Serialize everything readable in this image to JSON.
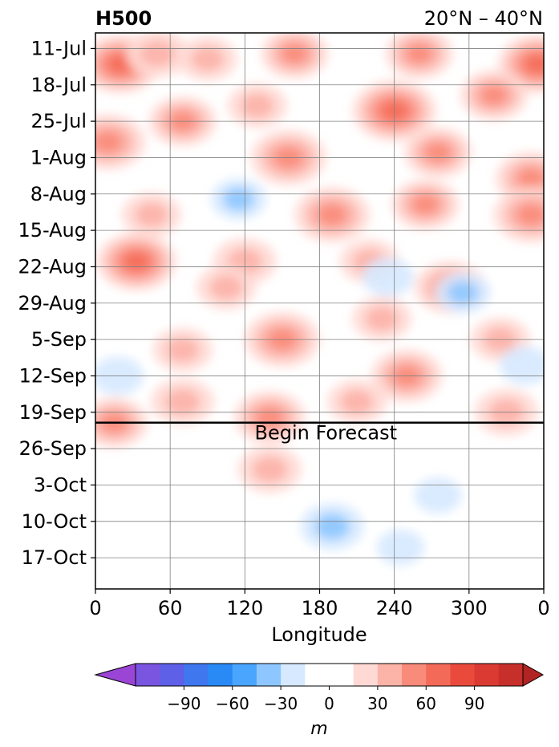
{
  "chart_data": {
    "type": "heatmap",
    "title_left": "H500",
    "title_right": "20°N – 40°N",
    "xlabel": "Longitude",
    "x_ticks": [
      "0",
      "60",
      "120",
      "180",
      "240",
      "300",
      "0"
    ],
    "y_ticks": [
      "11-Jul",
      "18-Jul",
      "25-Jul",
      "1-Aug",
      "8-Aug",
      "15-Aug",
      "22-Aug",
      "29-Aug",
      "5-Sep",
      "12-Sep",
      "19-Sep",
      "26-Sep",
      "3-Oct",
      "10-Oct",
      "17-Oct"
    ],
    "forecast_start": "2021-09-21",
    "annotation": "Begin Forecast",
    "colorbar": {
      "ticks": [
        "−90",
        "−60",
        "−30",
        "0",
        "30",
        "60",
        "90"
      ],
      "unit": "m",
      "levels": [
        -105,
        -90,
        -75,
        -60,
        -45,
        -30,
        -15,
        0,
        15,
        30,
        45,
        60,
        75,
        90,
        105
      ],
      "colors": [
        "#9b45d6",
        "#7a55df",
        "#5e60e8",
        "#3f77ee",
        "#2a8af5",
        "#4aa5ff",
        "#8ec7ff",
        "#d6e9ff",
        "#ffffff",
        "#ffffff",
        "#ffd9d4",
        "#fcb3a8",
        "#f98b7a",
        "#f46a58",
        "#ea4a3c",
        "#da3a32",
        "#c72f2b",
        "#b22323"
      ]
    },
    "grid": true,
    "anomaly_regions": [
      {
        "lon": 20,
        "date": "2021-07-14",
        "value": 55
      },
      {
        "lon": 50,
        "date": "2021-07-12",
        "value": 35
      },
      {
        "lon": 90,
        "date": "2021-07-13",
        "value": 30
      },
      {
        "lon": 160,
        "date": "2021-07-12",
        "value": 40
      },
      {
        "lon": 260,
        "date": "2021-07-12",
        "value": 40
      },
      {
        "lon": 355,
        "date": "2021-07-14",
        "value": 55
      },
      {
        "lon": 70,
        "date": "2021-07-25",
        "value": 40
      },
      {
        "lon": 130,
        "date": "2021-07-22",
        "value": 30
      },
      {
        "lon": 240,
        "date": "2021-07-23",
        "value": 60
      },
      {
        "lon": 320,
        "date": "2021-07-20",
        "value": 40
      },
      {
        "lon": 10,
        "date": "2021-07-29",
        "value": 50
      },
      {
        "lon": 155,
        "date": "2021-08-01",
        "value": 50
      },
      {
        "lon": 275,
        "date": "2021-07-31",
        "value": 40
      },
      {
        "lon": 350,
        "date": "2021-08-05",
        "value": 45
      },
      {
        "lon": 190,
        "date": "2021-08-12",
        "value": 50
      },
      {
        "lon": 45,
        "date": "2021-08-12",
        "value": 30
      },
      {
        "lon": 265,
        "date": "2021-08-10",
        "value": 40
      },
      {
        "lon": 350,
        "date": "2021-08-12",
        "value": 50
      },
      {
        "lon": 33,
        "date": "2021-08-21",
        "value": 55
      },
      {
        "lon": 120,
        "date": "2021-08-21",
        "value": 35
      },
      {
        "lon": 220,
        "date": "2021-08-21",
        "value": 30
      },
      {
        "lon": 285,
        "date": "2021-08-26",
        "value": 45
      },
      {
        "lon": 105,
        "date": "2021-08-26",
        "value": 30
      },
      {
        "lon": 150,
        "date": "2021-09-05",
        "value": 50
      },
      {
        "lon": 230,
        "date": "2021-09-01",
        "value": 30
      },
      {
        "lon": 325,
        "date": "2021-09-05",
        "value": 30
      },
      {
        "lon": 70,
        "date": "2021-09-07",
        "value": 30
      },
      {
        "lon": 250,
        "date": "2021-09-12",
        "value": 45
      },
      {
        "lon": 15,
        "date": "2021-09-21",
        "value": 40
      },
      {
        "lon": 70,
        "date": "2021-09-17",
        "value": 35
      },
      {
        "lon": 140,
        "date": "2021-09-20",
        "value": 45
      },
      {
        "lon": 210,
        "date": "2021-09-17",
        "value": 30
      },
      {
        "lon": 330,
        "date": "2021-09-19",
        "value": 35
      },
      {
        "lon": 140,
        "date": "2021-09-30",
        "value": 35
      },
      {
        "lon": 115,
        "date": "2021-08-09",
        "value": -25
      },
      {
        "lon": 190,
        "date": "2021-10-11",
        "value": -35
      },
      {
        "lon": 235,
        "date": "2021-08-24",
        "value": -20
      },
      {
        "lon": 295,
        "date": "2021-08-27",
        "value": -25
      },
      {
        "lon": 345,
        "date": "2021-09-10",
        "value": -20
      },
      {
        "lon": 18,
        "date": "2021-09-12",
        "value": -20
      },
      {
        "lon": 245,
        "date": "2021-10-15",
        "value": -15
      },
      {
        "lon": 275,
        "date": "2021-10-05",
        "value": -15
      }
    ]
  }
}
